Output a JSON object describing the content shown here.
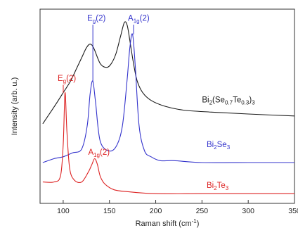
{
  "chart_data": {
    "type": "line",
    "xlabel": "Raman shift (cm",
    "xlabel_sup": "-1",
    "xlabel_end": ")",
    "ylabel": "Intensity (arb. u.)",
    "xlim": [
      75,
      350
    ],
    "ylim": [
      0,
      1
    ],
    "xticks": [
      100,
      150,
      200,
      250,
      300,
      350
    ],
    "grid": false,
    "legend": "inline labels",
    "series": [
      {
        "name": "Bi2(Se0.7Te0.3)3",
        "label_parts": [
          [
            "Bi",
            ""
          ],
          [
            "2",
            "sub"
          ],
          [
            "(Se",
            ""
          ],
          [
            "0.7",
            "sub"
          ],
          [
            "Te",
            ""
          ],
          [
            "0.3",
            "sub"
          ],
          [
            ")",
            ""
          ],
          [
            "3",
            "sub"
          ]
        ],
        "color": "#1a1a1a",
        "x": [
          78,
          85,
          92,
          100,
          108,
          115,
          120,
          125,
          129,
          133,
          140,
          147,
          152,
          157,
          162,
          166,
          169,
          172,
          176,
          180,
          186,
          195,
          210,
          230,
          260,
          300,
          350
        ],
        "y": [
          0.41,
          0.46,
          0.51,
          0.57,
          0.63,
          0.7,
          0.75,
          0.8,
          0.82,
          0.8,
          0.72,
          0.7,
          0.72,
          0.77,
          0.86,
          0.93,
          0.92,
          0.84,
          0.72,
          0.63,
          0.57,
          0.53,
          0.5,
          0.48,
          0.47,
          0.46,
          0.45
        ]
      },
      {
        "name": "Bi2Se3",
        "label_parts": [
          [
            "Bi",
            ""
          ],
          [
            "2",
            "sub"
          ],
          [
            "Se",
            ""
          ],
          [
            "3",
            "sub"
          ]
        ],
        "color": "#3333cc",
        "x": [
          78,
          90,
          100,
          110,
          120,
          126,
          129,
          132,
          135,
          140,
          150,
          158,
          164,
          169,
          172,
          175,
          178,
          182,
          188,
          195,
          205,
          220,
          250,
          300,
          350
        ],
        "y": [
          0.21,
          0.23,
          0.24,
          0.26,
          0.28,
          0.4,
          0.56,
          0.63,
          0.52,
          0.32,
          0.27,
          0.3,
          0.4,
          0.63,
          0.8,
          0.87,
          0.7,
          0.4,
          0.27,
          0.24,
          0.22,
          0.22,
          0.21,
          0.21,
          0.21
        ]
      },
      {
        "name": "Bi2Te3",
        "label_parts": [
          [
            "Bi",
            ""
          ],
          [
            "2",
            "sub"
          ],
          [
            "Te",
            ""
          ],
          [
            "3",
            "sub"
          ]
        ],
        "color": "#dd2222",
        "x": [
          78,
          90,
          97,
          100,
          102,
          104,
          107,
          112,
          120,
          127,
          131,
          134,
          137,
          140,
          145,
          155,
          170,
          200,
          250,
          300,
          350
        ],
        "y": [
          0.11,
          0.11,
          0.14,
          0.3,
          0.57,
          0.37,
          0.18,
          0.12,
          0.11,
          0.16,
          0.2,
          0.23,
          0.2,
          0.14,
          0.1,
          0.07,
          0.06,
          0.05,
          0.05,
          0.05,
          0.05
        ]
      }
    ],
    "annotations": [
      {
        "parts": [
          [
            "E",
            ""
          ],
          [
            "g",
            "sub"
          ],
          [
            "(2)",
            ""
          ]
        ],
        "color": "#3333cc",
        "x": 126,
        "y": 0.94,
        "line_from": 0.92,
        "line_to": 0.63
      },
      {
        "parts": [
          [
            "A",
            ""
          ],
          [
            "1g",
            "sub"
          ],
          [
            "(2)",
            ""
          ]
        ],
        "color": "#3333cc",
        "x": 170,
        "y": 0.94,
        "line_from": 0.92,
        "line_to": 0.87
      },
      {
        "parts": [
          [
            "E",
            ""
          ],
          [
            "g",
            "sub"
          ],
          [
            "(2)",
            ""
          ]
        ],
        "color": "#dd2222",
        "x": 94,
        "y": 0.63,
        "line_from": 0.61,
        "line_to": 0.57
      },
      {
        "parts": [
          [
            "A",
            ""
          ],
          [
            "1g",
            "sub"
          ],
          [
            "(2)",
            ""
          ]
        ],
        "color": "#dd2222",
        "x": 127,
        "y": 0.25,
        "line_from": null,
        "line_to": null
      }
    ]
  }
}
